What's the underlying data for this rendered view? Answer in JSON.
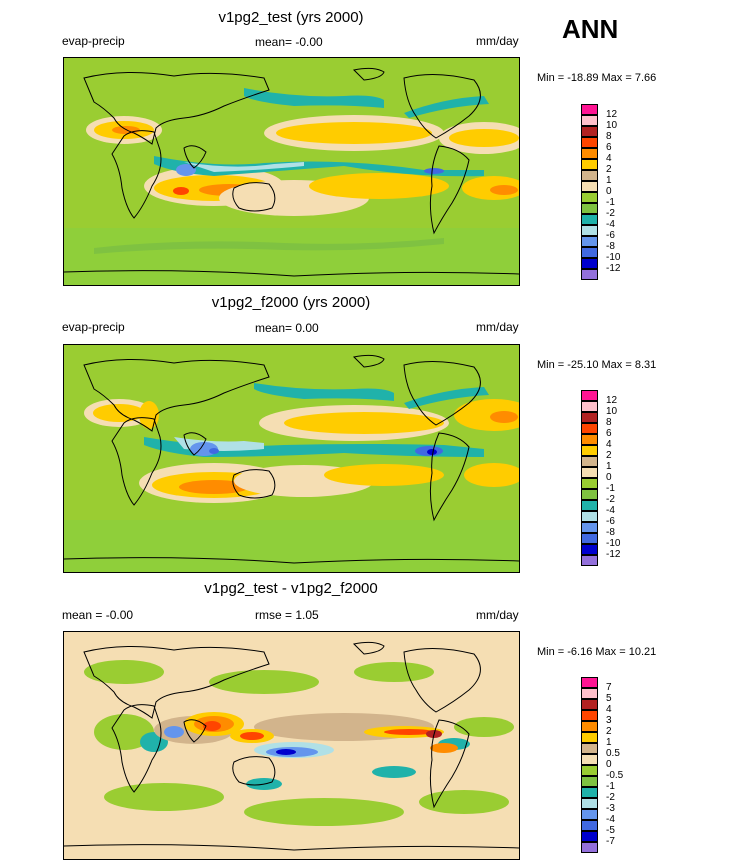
{
  "season": "ANN",
  "panels": [
    {
      "title": "v1pg2_test (yrs 2000)",
      "left_label": "evap-precip",
      "center_label": "mean=  -0.00",
      "right_label": "mm/day",
      "minmax": "Min = -18.89 Max =   7.66",
      "colorbar": {
        "labels": [
          "12",
          "10",
          "8",
          "6",
          "4",
          "2",
          "1",
          "0",
          "-1",
          "-2",
          "-4",
          "-6",
          "-8",
          "-10",
          "-12"
        ],
        "colors": [
          "#ff1493",
          "#ffc0cb",
          "#b22222",
          "#ff4500",
          "#ff8c00",
          "#ffcc00",
          "#d2b48c",
          "#f5deb3",
          "#9acd32",
          "#7fc241",
          "#20b2aa",
          "#b0e0e6",
          "#6495ed",
          "#4169e1",
          "#0000cd",
          "#9370db"
        ]
      }
    },
    {
      "title": "v1pg2_f2000 (yrs 2000)",
      "left_label": "evap-precip",
      "center_label": "mean=   0.00",
      "right_label": "mm/day",
      "minmax": "Min = -25.10 Max =   8.31",
      "colorbar": {
        "labels": [
          "12",
          "10",
          "8",
          "6",
          "4",
          "2",
          "1",
          "0",
          "-1",
          "-2",
          "-4",
          "-6",
          "-8",
          "-10",
          "-12"
        ],
        "colors": [
          "#ff1493",
          "#ffc0cb",
          "#b22222",
          "#ff4500",
          "#ff8c00",
          "#ffcc00",
          "#d2b48c",
          "#f5deb3",
          "#9acd32",
          "#7fc241",
          "#20b2aa",
          "#b0e0e6",
          "#6495ed",
          "#4169e1",
          "#0000cd",
          "#9370db"
        ]
      }
    },
    {
      "title": "v1pg2_test - v1pg2_f2000",
      "left_label": "mean =  -0.00",
      "center_label": "rmse =   1.05",
      "right_label": "mm/day",
      "minmax": "Min =  -6.16 Max =  10.21",
      "colorbar": {
        "labels": [
          "7",
          "5",
          "4",
          "3",
          "2",
          "1",
          "0.5",
          "0",
          "-0.5",
          "-1",
          "-2",
          "-3",
          "-4",
          "-5",
          "-7"
        ],
        "colors": [
          "#ff1493",
          "#ffc0cb",
          "#b22222",
          "#ff4500",
          "#ff8c00",
          "#ffcc00",
          "#d2b48c",
          "#f5deb3",
          "#9acd32",
          "#7fc241",
          "#20b2aa",
          "#b0e0e6",
          "#6495ed",
          "#4169e1",
          "#0000cd",
          "#9370db"
        ]
      }
    }
  ],
  "chart_data": [
    {
      "type": "heatmap",
      "title": "v1pg2_test (yrs 2000)",
      "field": "evap-precip",
      "units": "mm/day",
      "mean": -0.0,
      "min": -18.89,
      "max": 7.66,
      "contour_levels": [
        -12,
        -10,
        -8,
        -6,
        -4,
        -2,
        -1,
        0,
        1,
        2,
        4,
        6,
        8,
        10,
        12
      ]
    },
    {
      "type": "heatmap",
      "title": "v1pg2_f2000 (yrs 2000)",
      "field": "evap-precip",
      "units": "mm/day",
      "mean": 0.0,
      "min": -25.1,
      "max": 8.31,
      "contour_levels": [
        -12,
        -10,
        -8,
        -6,
        -4,
        -2,
        -1,
        0,
        1,
        2,
        4,
        6,
        8,
        10,
        12
      ]
    },
    {
      "type": "heatmap",
      "title": "v1pg2_test - v1pg2_f2000",
      "units": "mm/day",
      "mean": -0.0,
      "rmse": 1.05,
      "min": -6.16,
      "max": 10.21,
      "contour_levels": [
        -7,
        -5,
        -4,
        -3,
        -2,
        -1,
        -0.5,
        0,
        0.5,
        1,
        2,
        3,
        4,
        5,
        7
      ]
    }
  ]
}
